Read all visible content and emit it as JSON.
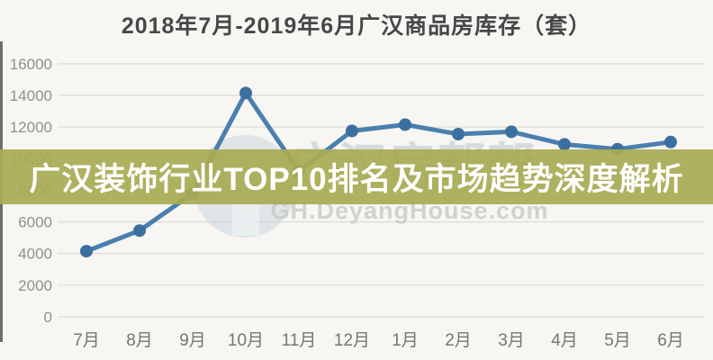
{
  "title": "2018年7月-2019年6月广汉商品房库存（套）",
  "overlay_banner": {
    "text": "广汉装饰行业TOP10排名及市场趋势深度解析",
    "background_color": "#a8ab53",
    "text_color": "#ffffff"
  },
  "watermark": {
    "site_name": "广汉房帮帮",
    "url": "GH.DeyangHouse.com"
  },
  "chart_data": {
    "type": "line",
    "title": "2018年7月-2019年6月广汉商品房库存（套）",
    "categories": [
      "7月",
      "8月",
      "9月",
      "10月",
      "11月",
      "12月",
      "1月",
      "2月",
      "3月",
      "4月",
      "5月",
      "6月"
    ],
    "values": [
      4150,
      5450,
      7800,
      14150,
      9200,
      11750,
      12150,
      11550,
      11700,
      10900,
      10600,
      11050
    ],
    "unit": "套",
    "xlabel": "",
    "ylabel": "",
    "ylim": [
      0,
      16000
    ],
    "ytick_interval": 2000,
    "ytick_labels": [
      "0",
      "2000",
      "4000",
      "6000",
      "8000",
      "10000",
      "12000",
      "14000",
      "16000"
    ],
    "grid": true,
    "legend": "none",
    "line_color": "#4a7fae",
    "marker_color": "#3b6f9f"
  }
}
